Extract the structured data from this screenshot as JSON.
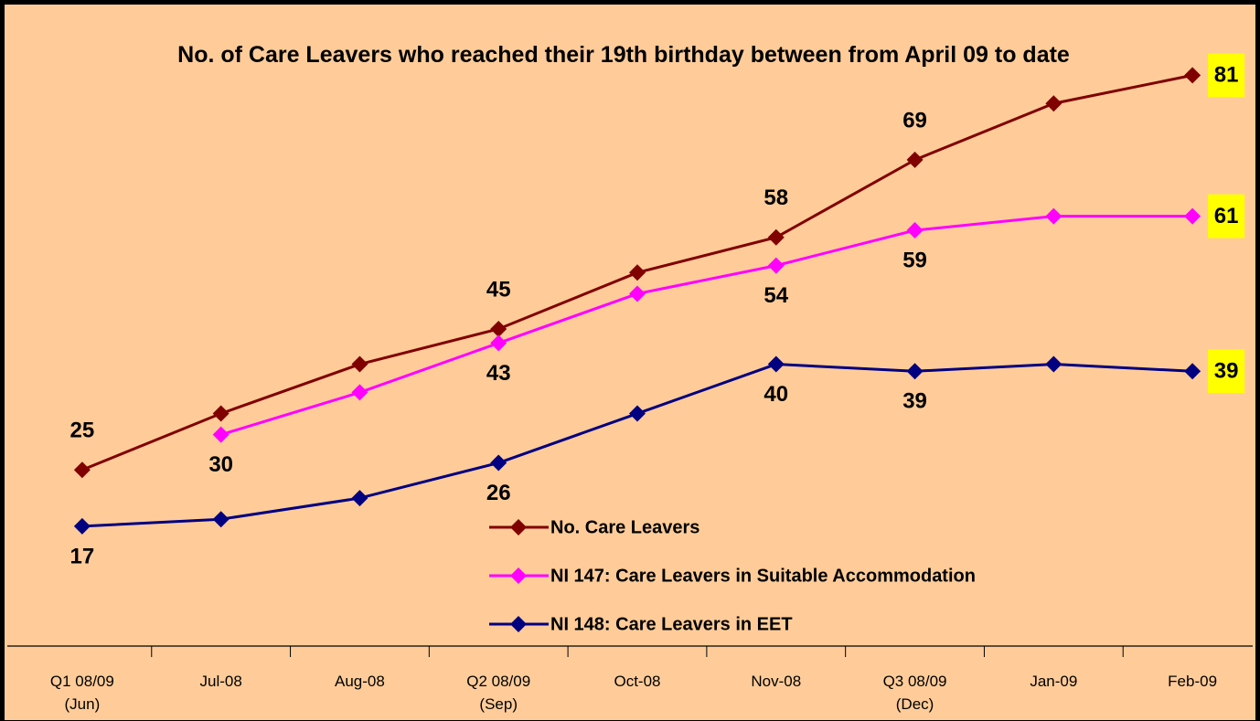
{
  "chart_data": {
    "type": "line",
    "title": "No. of Care Leavers who reached their 19th birthday between from April 09 to date",
    "categories": [
      "Q1 08/09\n(Jun)",
      "Jul-08",
      "Aug-08",
      "Q2 08/09\n(Sep)",
      "Oct-08",
      "Nov-08",
      "Q3 08/09\n(Dec)",
      "Jan-09",
      "Feb-09"
    ],
    "series": [
      {
        "name": "No. Care Leavers",
        "color": "#800000",
        "values": [
          25,
          33,
          40,
          45,
          53,
          58,
          69,
          77,
          81
        ],
        "value_labels": [
          "25",
          null,
          null,
          "45",
          null,
          "58",
          "69",
          null,
          "81"
        ]
      },
      {
        "name": "NI 147: Care Leavers in Suitable Accommodation",
        "color": "#ff00ff",
        "values": [
          null,
          30,
          36,
          43,
          50,
          54,
          59,
          61,
          61
        ],
        "value_labels": [
          null,
          "30",
          null,
          "43",
          null,
          "54",
          "59",
          null,
          "61"
        ]
      },
      {
        "name": "NI 148: Care Leavers in EET",
        "color": "#000080",
        "values": [
          17,
          18,
          21,
          26,
          33,
          40,
          39,
          40,
          39
        ],
        "value_labels": [
          "17",
          null,
          null,
          "26",
          null,
          "40",
          "39",
          null,
          "39"
        ]
      }
    ],
    "ylim": [
      0,
      90
    ]
  }
}
